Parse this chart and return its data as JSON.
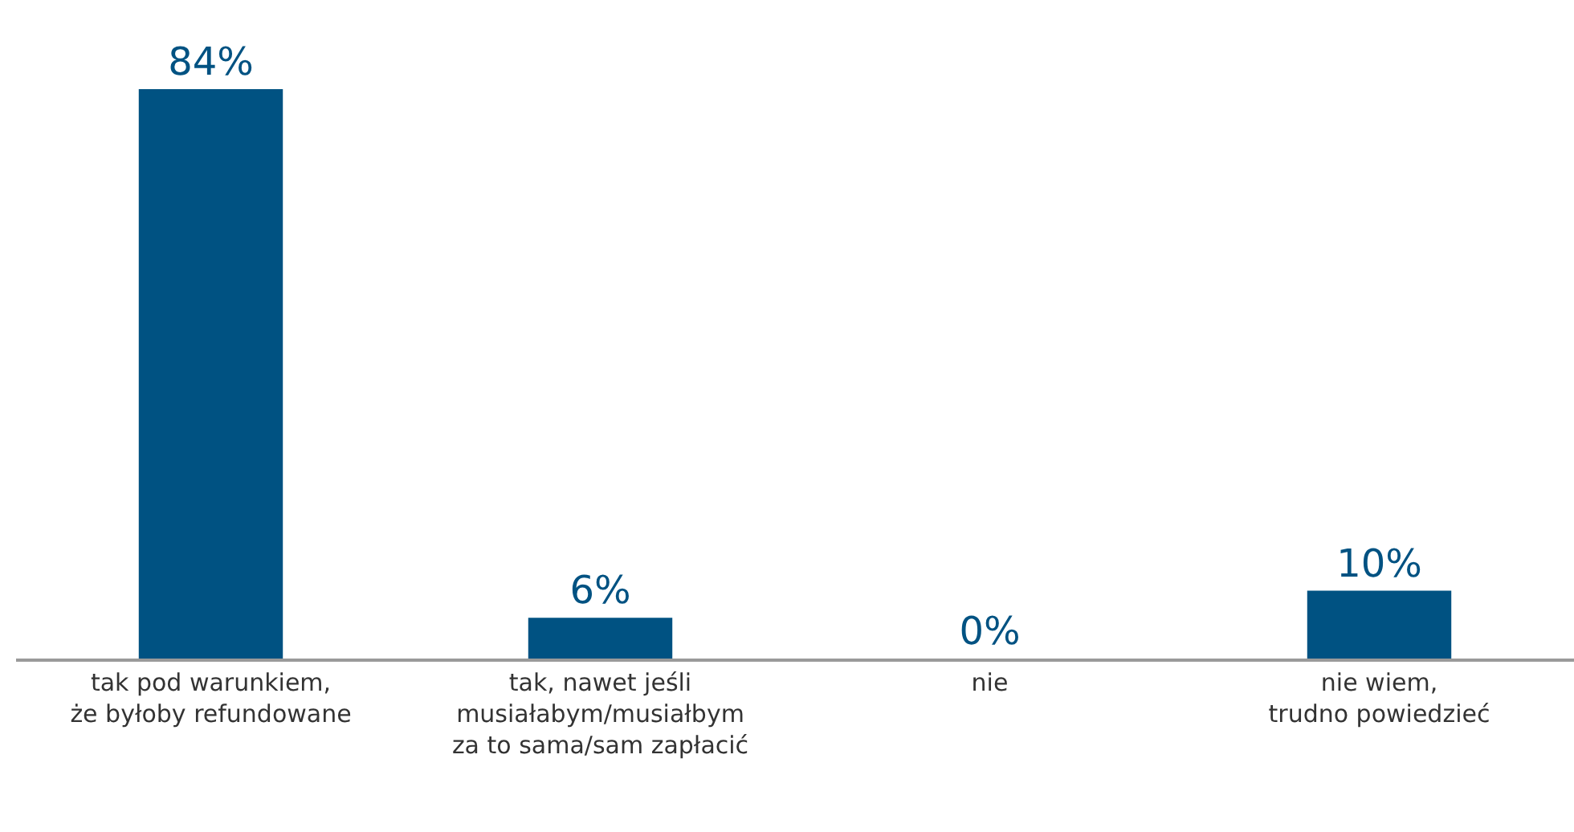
{
  "chart_data": {
    "type": "bar",
    "categories": [
      "tak pod warunkiem,\nże byłoby refundowane",
      "tak, nawet jeśli\nmusiałabym/musiałbym\nza to sama/sam zapłacić",
      "nie",
      "nie wiem,\ntrudno powiedzieć"
    ],
    "values": [
      84,
      6,
      0,
      10
    ],
    "value_labels": [
      "84%",
      "6%",
      "0%",
      "10%"
    ],
    "color": "#005282"
  }
}
